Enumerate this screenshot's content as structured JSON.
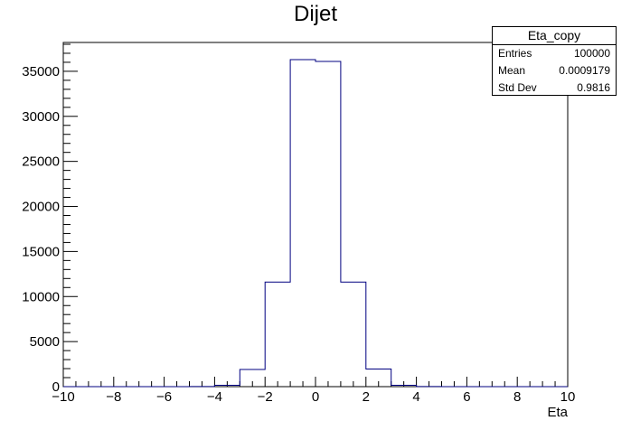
{
  "title": "Dijet",
  "stats_box": {
    "name": "Eta_copy",
    "rows": [
      {
        "label": "Entries",
        "value": "100000"
      },
      {
        "label": "Mean",
        "value": "0.0009179"
      },
      {
        "label": "Std Dev",
        "value": "0.9816"
      }
    ]
  },
  "colors": {
    "histogram_line": "#000080",
    "axes": "#000000"
  },
  "chart_data": {
    "type": "bar",
    "title": "Dijet",
    "xlabel": "Eta",
    "ylabel": "",
    "xlim": [
      -10,
      10
    ],
    "ylim": [
      0,
      38200
    ],
    "x_ticks": [
      -10,
      -8,
      -6,
      -4,
      -2,
      0,
      2,
      4,
      6,
      8,
      10
    ],
    "x_tick_labels": [
      "−10",
      "−8",
      "−6",
      "−4",
      "−2",
      "0",
      "2",
      "4",
      "6",
      "8",
      "10"
    ],
    "y_ticks": [
      0,
      5000,
      10000,
      15000,
      20000,
      25000,
      30000,
      35000
    ],
    "y_tick_labels": [
      "0",
      "5000",
      "10000",
      "15000",
      "20000",
      "25000",
      "30000",
      "35000"
    ],
    "bin_edges": [
      -10,
      -9,
      -8,
      -7,
      -6,
      -5,
      -4,
      -3,
      -2,
      -1,
      0,
      1,
      2,
      3,
      4,
      5,
      6,
      7,
      8,
      9,
      10
    ],
    "values": [
      0,
      0,
      0,
      0,
      0,
      10,
      150,
      1900,
      11600,
      36300,
      36100,
      11600,
      1950,
      150,
      10,
      0,
      0,
      0,
      0,
      0
    ],
    "grid": false,
    "legend": "stats box top-right"
  }
}
